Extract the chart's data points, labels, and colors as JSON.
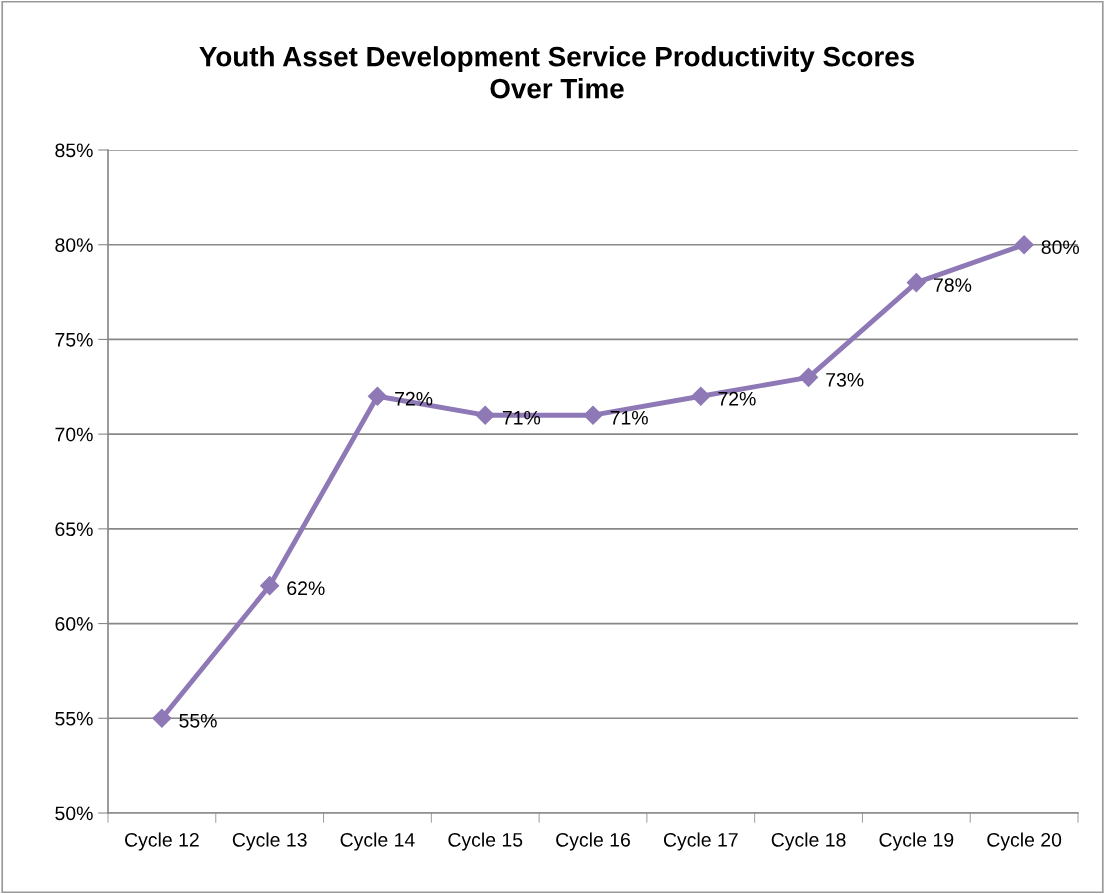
{
  "chart_data": {
    "type": "line",
    "title": "Youth Asset Development Service Productivity Scores\nOver Time",
    "categories": [
      "Cycle 12",
      "Cycle 13",
      "Cycle 14",
      "Cycle 15",
      "Cycle 16",
      "Cycle 17",
      "Cycle 18",
      "Cycle 19",
      "Cycle 20"
    ],
    "series": [
      {
        "color": "#8e79b6",
        "values": [
          55,
          62,
          72,
          71,
          71,
          72,
          73,
          78,
          80
        ],
        "value_labels": [
          "55%",
          "62%",
          "72%",
          "71%",
          "71%",
          "72%",
          "73%",
          "78%",
          "80%"
        ]
      }
    ],
    "ylim": [
      50,
      85
    ],
    "yticks": [
      {
        "value": 50,
        "label": "50%"
      },
      {
        "value": 55,
        "label": "55%"
      },
      {
        "value": 60,
        "label": "60%"
      },
      {
        "value": 65,
        "label": "65%"
      },
      {
        "value": 70,
        "label": "70%"
      },
      {
        "value": 75,
        "label": "75%"
      },
      {
        "value": 80,
        "label": "80%"
      },
      {
        "value": 85,
        "label": "85%"
      }
    ],
    "grid": "y",
    "marker": "diamond",
    "line_style": "solid",
    "legend": false
  }
}
